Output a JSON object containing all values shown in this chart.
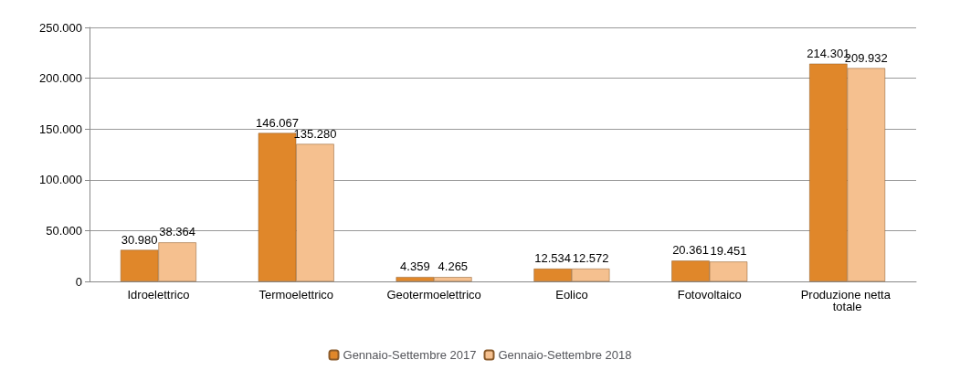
{
  "chart_data": {
    "type": "bar",
    "categories": [
      "Idroelettrico",
      "Termoelettrico",
      "Geotermoelettrico",
      "Eolico",
      "Fotovoltaico",
      "Produzione netta totale"
    ],
    "series": [
      {
        "name": "Gennaio-Settembre 2017",
        "color": "#e0872a",
        "values": [
          30980,
          146067,
          4359,
          12534,
          20361,
          214301
        ],
        "value_labels": [
          "30.980",
          "146.067",
          "4.359",
          "12.534",
          "20.361",
          "214.301"
        ]
      },
      {
        "name": "Gennaio-Settembre 2018",
        "color": "#f5c08f",
        "values": [
          38364,
          135280,
          4265,
          12572,
          19451,
          209932
        ],
        "value_labels": [
          "38.364",
          "135.280",
          "4.265",
          "12.572",
          "19.451",
          "209.932"
        ]
      }
    ],
    "ylim": [
      0,
      250000
    ],
    "yticks": [
      {
        "value": 0,
        "label": "0"
      },
      {
        "value": 50000,
        "label": "50.000"
      },
      {
        "value": 100000,
        "label": "100.000"
      },
      {
        "value": 150000,
        "label": "150.000"
      },
      {
        "value": 200000,
        "label": "200.000"
      },
      {
        "value": 250000,
        "label": "250.000"
      }
    ],
    "grid": "y",
    "legend": "bottom"
  }
}
